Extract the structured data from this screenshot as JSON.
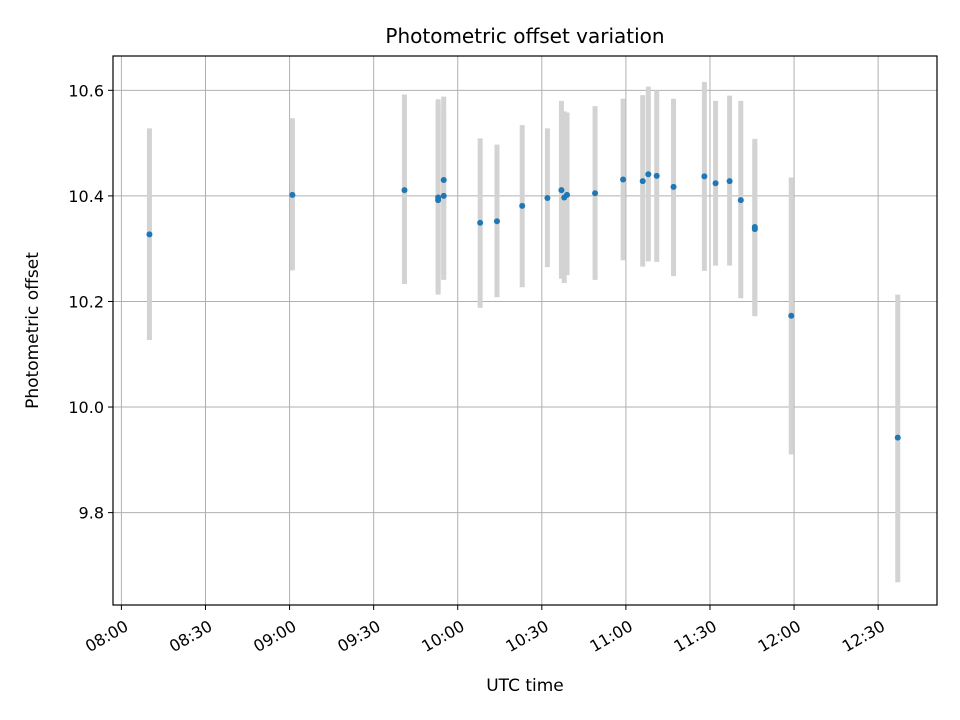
{
  "chart_data": {
    "type": "scatter",
    "title": "Photometric offset variation",
    "xlabel": "UTC time",
    "ylabel": "Photometric offset",
    "xlim": [
      "07:57",
      "12:51"
    ],
    "ylim": [
      9.625,
      10.665
    ],
    "x_ticks": [
      "08:00",
      "08:30",
      "09:00",
      "09:30",
      "10:00",
      "10:30",
      "11:00",
      "11:30",
      "12:00",
      "12:30"
    ],
    "y_ticks": [
      9.8,
      10.0,
      10.2,
      10.4,
      10.6
    ],
    "y_tick_labels": [
      "9.8",
      "10.0",
      "10.2",
      "10.4",
      "10.6"
    ],
    "grid": true,
    "point_color": "#1f77b4",
    "errorbar_color": "#d3d3d3",
    "points": [
      {
        "x": "08:10",
        "y": 10.327,
        "low": 10.127,
        "high": 10.528
      },
      {
        "x": "09:01",
        "y": 10.402,
        "low": 10.259,
        "high": 10.547
      },
      {
        "x": "09:41",
        "y": 10.411,
        "low": 10.233,
        "high": 10.592
      },
      {
        "x": "09:53",
        "y": 10.397,
        "low": 10.213,
        "high": 10.583
      },
      {
        "x": "09:53",
        "y": 10.392,
        "low": 10.218,
        "high": 10.575
      },
      {
        "x": "09:55",
        "y": 10.43,
        "low": 10.25,
        "high": 10.588
      },
      {
        "x": "09:55",
        "y": 10.4,
        "low": 10.241,
        "high": 10.56
      },
      {
        "x": "10:08",
        "y": 10.349,
        "low": 10.188,
        "high": 10.509
      },
      {
        "x": "10:14",
        "y": 10.352,
        "low": 10.208,
        "high": 10.497
      },
      {
        "x": "10:23",
        "y": 10.381,
        "low": 10.227,
        "high": 10.534
      },
      {
        "x": "10:32",
        "y": 10.396,
        "low": 10.265,
        "high": 10.528
      },
      {
        "x": "10:37",
        "y": 10.411,
        "low": 10.243,
        "high": 10.58
      },
      {
        "x": "10:38",
        "y": 10.397,
        "low": 10.235,
        "high": 10.56
      },
      {
        "x": "10:39",
        "y": 10.402,
        "low": 10.25,
        "high": 10.558
      },
      {
        "x": "10:49",
        "y": 10.405,
        "low": 10.241,
        "high": 10.57
      },
      {
        "x": "10:59",
        "y": 10.431,
        "low": 10.278,
        "high": 10.584
      },
      {
        "x": "11:06",
        "y": 10.428,
        "low": 10.266,
        "high": 10.591
      },
      {
        "x": "11:08",
        "y": 10.441,
        "low": 10.276,
        "high": 10.607
      },
      {
        "x": "11:11",
        "y": 10.438,
        "low": 10.275,
        "high": 10.6
      },
      {
        "x": "11:17",
        "y": 10.417,
        "low": 10.248,
        "high": 10.584
      },
      {
        "x": "11:28",
        "y": 10.437,
        "low": 10.258,
        "high": 10.616
      },
      {
        "x": "11:32",
        "y": 10.424,
        "low": 10.268,
        "high": 10.58
      },
      {
        "x": "11:37",
        "y": 10.428,
        "low": 10.268,
        "high": 10.59
      },
      {
        "x": "11:41",
        "y": 10.392,
        "low": 10.206,
        "high": 10.58
      },
      {
        "x": "11:46",
        "y": 10.337,
        "low": 10.172,
        "high": 10.5
      },
      {
        "x": "11:46",
        "y": 10.341,
        "low": 10.175,
        "high": 10.508
      },
      {
        "x": "11:59",
        "y": 10.173,
        "low": 9.91,
        "high": 10.435
      },
      {
        "x": "12:37",
        "y": 9.942,
        "low": 9.668,
        "high": 10.213
      }
    ]
  }
}
